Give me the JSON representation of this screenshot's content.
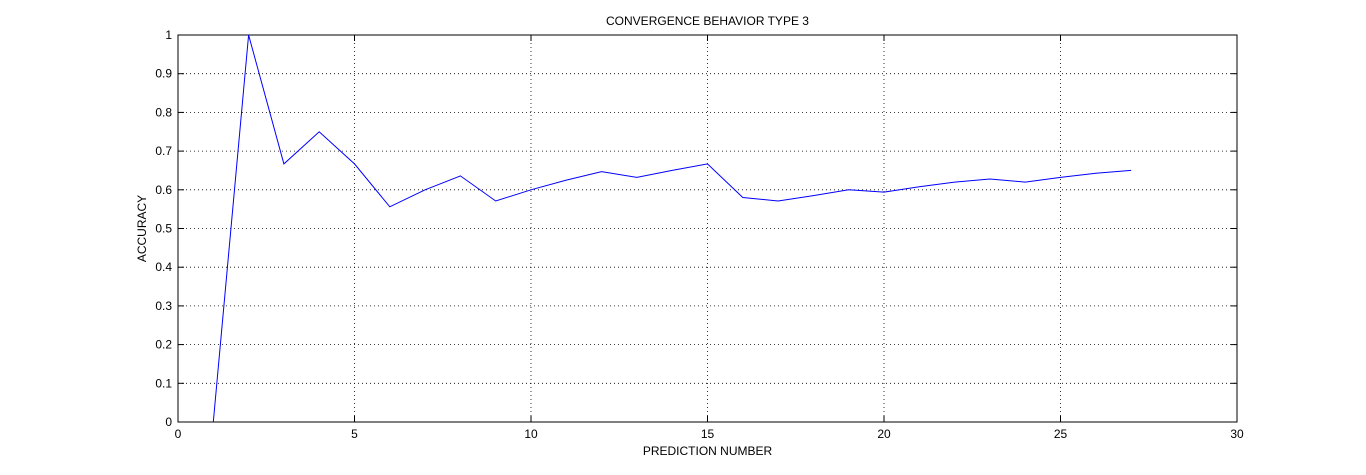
{
  "chart_data": {
    "type": "line",
    "title": "CONVERGENCE BEHAVIOR TYPE 3",
    "xlabel": "PREDICTION NUMBER",
    "ylabel": "ACCURACY",
    "xlim": [
      0,
      30
    ],
    "ylim": [
      0,
      1
    ],
    "xticks": [
      0,
      5,
      10,
      15,
      20,
      25,
      30
    ],
    "yticks": [
      0,
      0.1,
      0.2,
      0.3,
      0.4,
      0.5,
      0.6,
      0.7,
      0.8,
      0.9,
      1
    ],
    "grid": true,
    "line_color": "#0000ff",
    "series": [
      {
        "x": [
          1,
          2,
          3,
          4,
          5,
          6,
          7,
          8,
          9,
          10,
          11,
          12,
          13,
          14,
          15,
          16,
          17,
          18,
          19,
          20,
          21,
          22,
          23,
          24,
          25,
          26,
          27
        ],
        "y": [
          0,
          1,
          0.667,
          0.75,
          0.667,
          0.556,
          0.6,
          0.636,
          0.571,
          0.6,
          0.625,
          0.647,
          0.632,
          0.65,
          0.667,
          0.58,
          0.571,
          0.585,
          0.6,
          0.594,
          0.608,
          0.62,
          0.628,
          0.62,
          0.632,
          0.643,
          0.65
        ]
      }
    ]
  }
}
